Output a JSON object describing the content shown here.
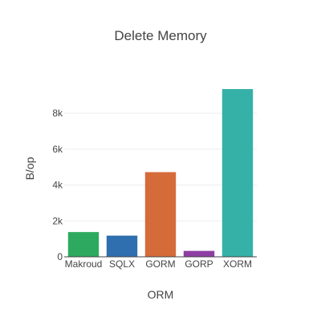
{
  "chart_data": {
    "type": "bar",
    "title": "Delete Memory",
    "xlabel": "ORM",
    "ylabel": "B/op",
    "categories": [
      "Makroud",
      "SQLX",
      "GORM",
      "GORP",
      "XORM"
    ],
    "values": [
      1380,
      1180,
      4720,
      330,
      9350
    ],
    "colors": [
      "#2daa5f",
      "#2f6fb0",
      "#d66b3a",
      "#8e3ea3",
      "#35b1a8"
    ],
    "ylim": [
      0,
      9350
    ],
    "yticks": [
      0,
      2000,
      4000,
      6000,
      8000
    ],
    "ytick_labels": [
      "0",
      "2k",
      "4k",
      "6k",
      "8k"
    ],
    "grid": true,
    "legend": "none"
  }
}
